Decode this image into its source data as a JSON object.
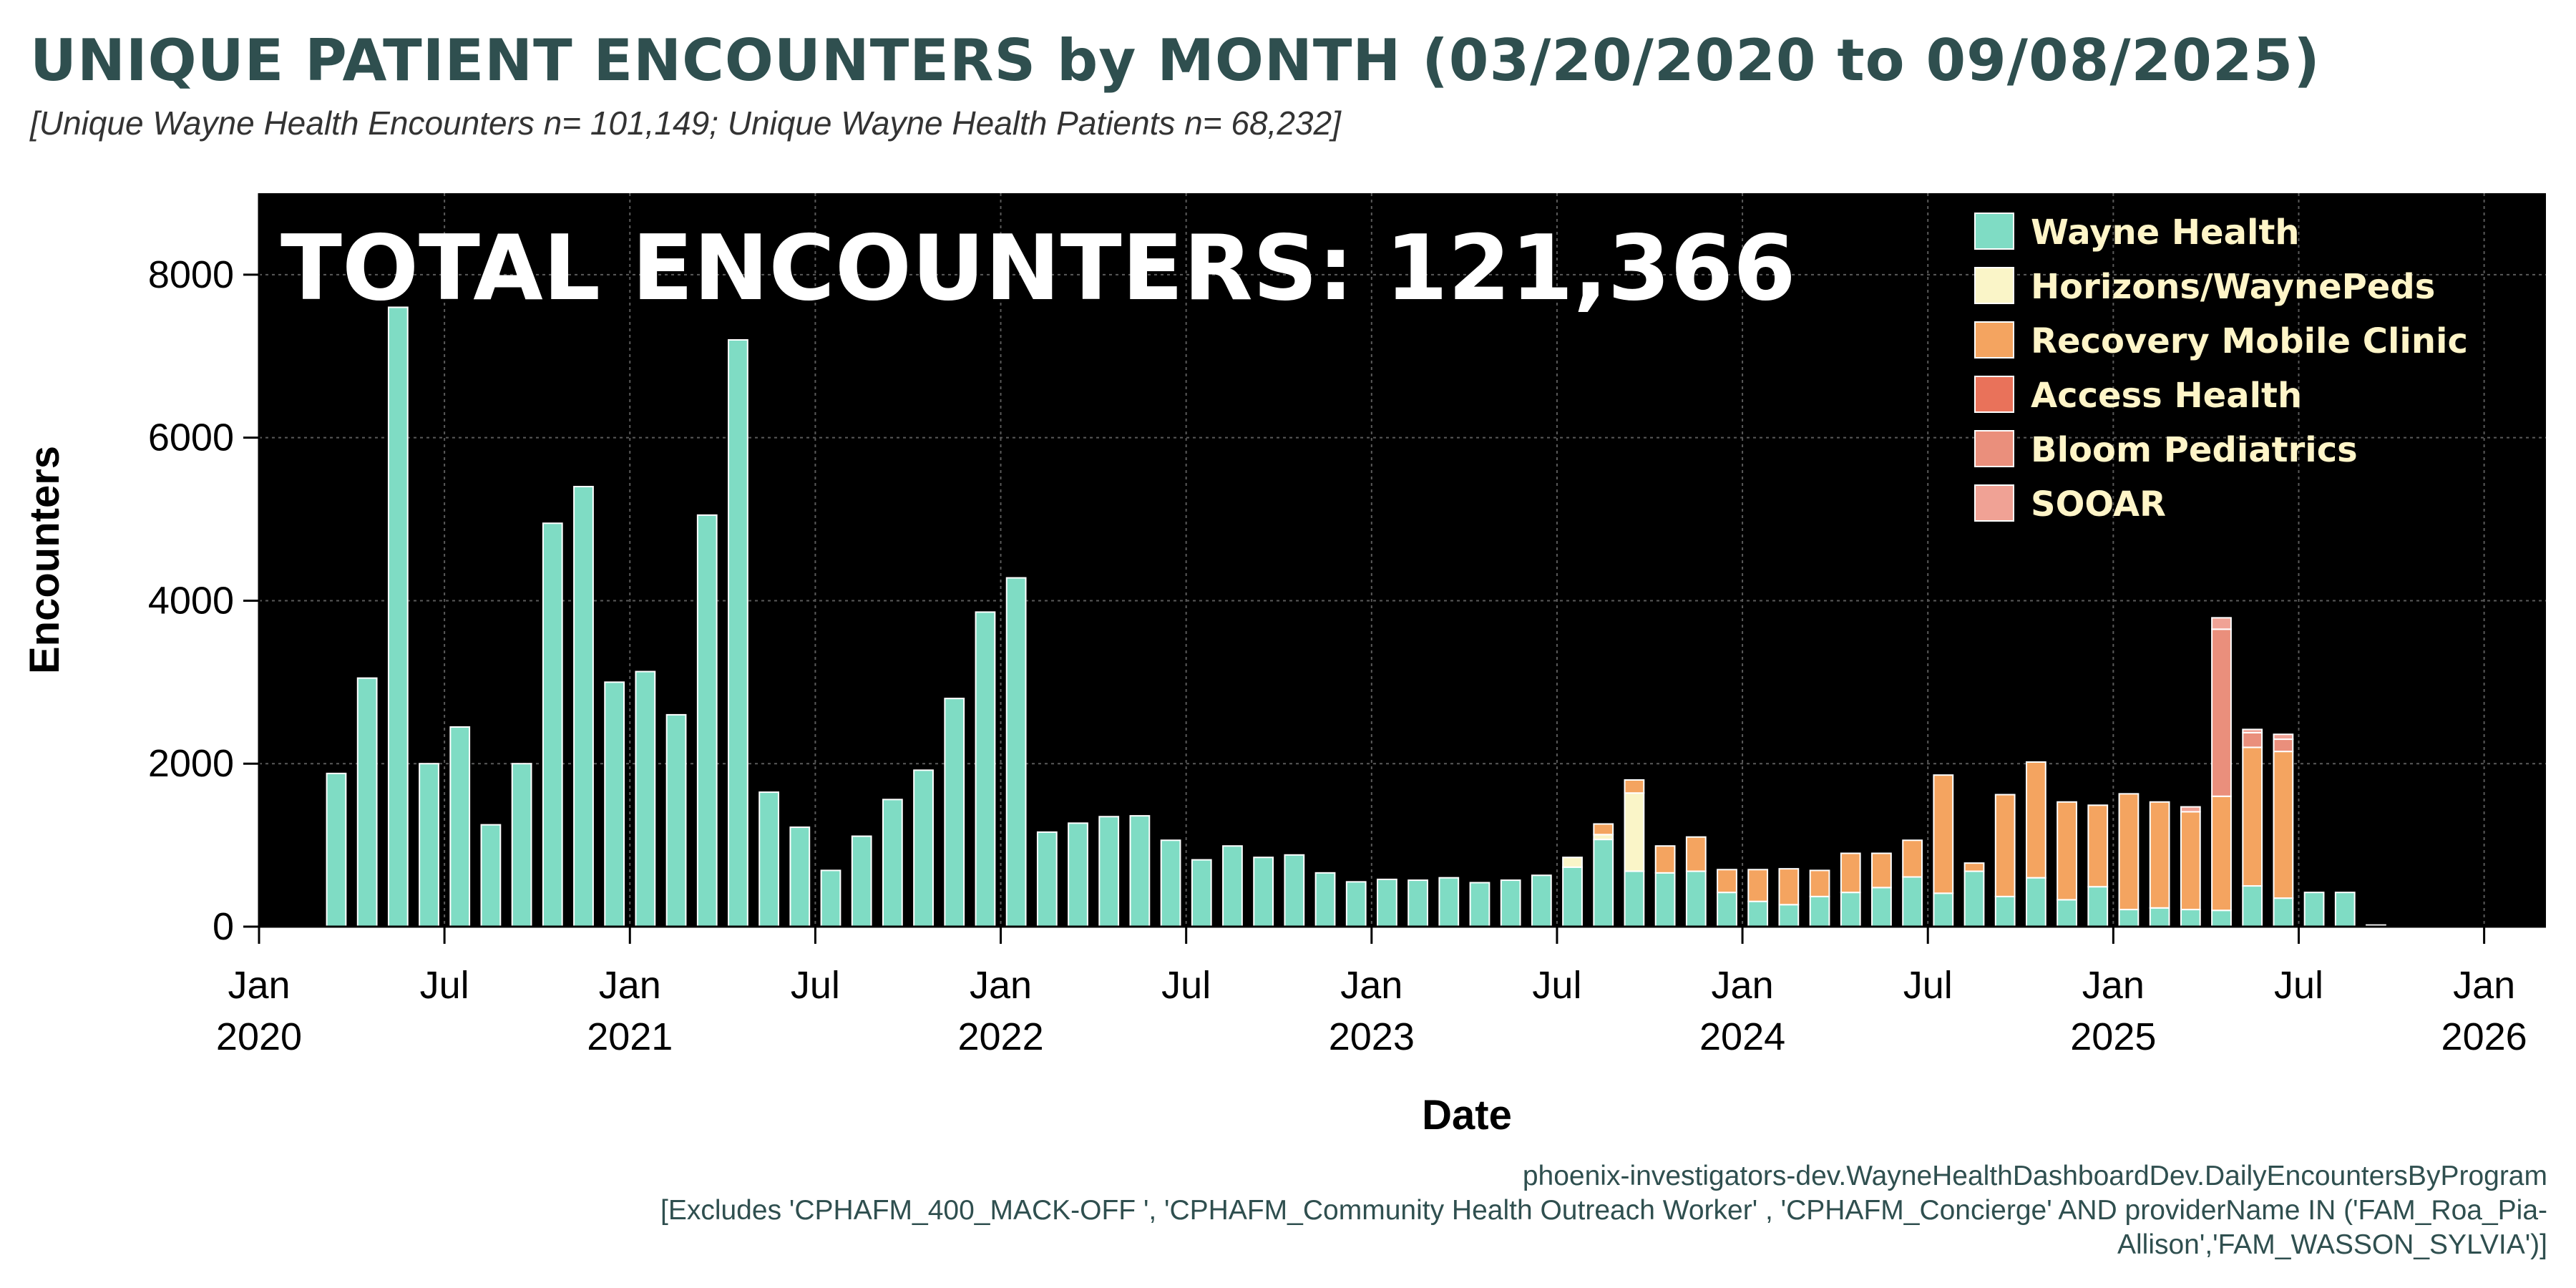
{
  "header": {
    "title": "UNIQUE PATIENT ENCOUNTERS by MONTH (03/20/2020 to 09/08/2025)",
    "subtitle": "[Unique Wayne Health Encounters n= 101,149; Unique Wayne Health Patients n=  68,232]"
  },
  "footer": {
    "line1": "phoenix-investigators-dev.WayneHealthDashboardDev.DailyEncountersByProgram",
    "line2": "[Excludes 'CPHAFM_400_MACK-OFF ', 'CPHAFM_Community Health Outreach Worker' , 'CPHAFM_Concierge' AND providerName IN ('FAM_Roa_Pia-",
    "line3": "Allison','FAM_WASSON_SYLVIA')]"
  },
  "colors": {
    "plot_background": "#000000",
    "bar_outline": "#ffffff",
    "axis_text": "#000000",
    "legend_text": "#fff5c8",
    "total_text": "#ffffff"
  },
  "chart_data": {
    "type": "bar",
    "stacked": true,
    "title": "UNIQUE PATIENT ENCOUNTERS by MONTH (03/20/2020 to 09/08/2025)",
    "xlabel": "Date",
    "ylabel": "Encounters",
    "annotation": "TOTAL ENCOUNTERS:  121,366",
    "ylim": [
      0,
      9000
    ],
    "xlim": [
      "2020-01",
      "2026-03"
    ],
    "yticks": [
      0,
      2000,
      4000,
      6000,
      8000
    ],
    "xticks": [
      {
        "month": "2020-01",
        "line1": "Jan",
        "line2": "2020"
      },
      {
        "month": "2020-07",
        "line1": "Jul",
        "line2": ""
      },
      {
        "month": "2021-01",
        "line1": "Jan",
        "line2": "2021"
      },
      {
        "month": "2021-07",
        "line1": "Jul",
        "line2": ""
      },
      {
        "month": "2022-01",
        "line1": "Jan",
        "line2": "2022"
      },
      {
        "month": "2022-07",
        "line1": "Jul",
        "line2": ""
      },
      {
        "month": "2023-01",
        "line1": "Jan",
        "line2": "2023"
      },
      {
        "month": "2023-07",
        "line1": "Jul",
        "line2": ""
      },
      {
        "month": "2024-01",
        "line1": "Jan",
        "line2": "2024"
      },
      {
        "month": "2024-07",
        "line1": "Jul",
        "line2": ""
      },
      {
        "month": "2025-01",
        "line1": "Jan",
        "line2": "2025"
      },
      {
        "month": "2025-07",
        "line1": "Jul",
        "line2": ""
      },
      {
        "month": "2026-01",
        "line1": "Jan",
        "line2": "2026"
      }
    ],
    "grid": true,
    "legend_position": "top-right",
    "categories": [
      "2020-03",
      "2020-04",
      "2020-05",
      "2020-06",
      "2020-07",
      "2020-08",
      "2020-09",
      "2020-10",
      "2020-11",
      "2020-12",
      "2021-01",
      "2021-02",
      "2021-03",
      "2021-04",
      "2021-05",
      "2021-06",
      "2021-07",
      "2021-08",
      "2021-09",
      "2021-10",
      "2021-11",
      "2021-12",
      "2022-01",
      "2022-02",
      "2022-03",
      "2022-04",
      "2022-05",
      "2022-06",
      "2022-07",
      "2022-08",
      "2022-09",
      "2022-10",
      "2022-11",
      "2022-12",
      "2023-01",
      "2023-02",
      "2023-03",
      "2023-04",
      "2023-05",
      "2023-06",
      "2023-07",
      "2023-08",
      "2023-09",
      "2023-10",
      "2023-11",
      "2023-12",
      "2024-01",
      "2024-02",
      "2024-03",
      "2024-04",
      "2024-05",
      "2024-06",
      "2024-07",
      "2024-08",
      "2024-09",
      "2024-10",
      "2024-11",
      "2024-12",
      "2025-01",
      "2025-02",
      "2025-03",
      "2025-04",
      "2025-05",
      "2025-06",
      "2025-07",
      "2025-08",
      "2025-09"
    ],
    "series": [
      {
        "name": "Wayne Health",
        "color": "#7fdcc4",
        "values": [
          1880,
          3050,
          7600,
          2000,
          2450,
          1250,
          2000,
          4950,
          5400,
          3000,
          3130,
          2600,
          5050,
          7200,
          1650,
          1220,
          690,
          1110,
          1560,
          1920,
          2800,
          3860,
          4280,
          1160,
          1270,
          1350,
          1360,
          1060,
          820,
          990,
          850,
          880,
          660,
          550,
          580,
          570,
          600,
          540,
          570,
          630,
          730,
          1070,
          680,
          660,
          680,
          420,
          310,
          270,
          370,
          420,
          480,
          610,
          410,
          680,
          370,
          600,
          330,
          490,
          210,
          230,
          210,
          200,
          500,
          350,
          420,
          420,
          20
        ]
      },
      {
        "name": "Horizons/WaynePeds",
        "color": "#faf5c8",
        "values": [
          0,
          0,
          0,
          0,
          0,
          0,
          0,
          0,
          0,
          0,
          0,
          0,
          0,
          0,
          0,
          0,
          0,
          0,
          0,
          0,
          0,
          0,
          0,
          0,
          0,
          0,
          0,
          0,
          0,
          0,
          0,
          0,
          0,
          0,
          0,
          0,
          0,
          0,
          0,
          0,
          120,
          60,
          960,
          0,
          0,
          0,
          0,
          0,
          0,
          0,
          0,
          0,
          0,
          0,
          0,
          0,
          0,
          0,
          0,
          0,
          0,
          0,
          0,
          0,
          0,
          0,
          0
        ]
      },
      {
        "name": "Recovery Mobile Clinic",
        "color": "#f4a460",
        "values": [
          0,
          0,
          0,
          0,
          0,
          0,
          0,
          0,
          0,
          0,
          0,
          0,
          0,
          0,
          0,
          0,
          0,
          0,
          0,
          0,
          0,
          0,
          0,
          0,
          0,
          0,
          0,
          0,
          0,
          0,
          0,
          0,
          0,
          0,
          0,
          0,
          0,
          0,
          0,
          0,
          0,
          130,
          160,
          330,
          420,
          280,
          390,
          440,
          320,
          480,
          420,
          450,
          1450,
          100,
          1250,
          1420,
          1200,
          1000,
          1420,
          1300,
          1200,
          1400,
          1700,
          1800,
          0,
          0,
          0
        ]
      },
      {
        "name": "Access Health",
        "color": "#e9725a",
        "values": [
          0,
          0,
          0,
          0,
          0,
          0,
          0,
          0,
          0,
          0,
          0,
          0,
          0,
          0,
          0,
          0,
          0,
          0,
          0,
          0,
          0,
          0,
          0,
          0,
          0,
          0,
          0,
          0,
          0,
          0,
          0,
          0,
          0,
          0,
          0,
          0,
          0,
          0,
          0,
          0,
          0,
          0,
          0,
          0,
          0,
          0,
          0,
          0,
          0,
          0,
          0,
          0,
          0,
          0,
          0,
          0,
          0,
          0,
          0,
          0,
          0,
          0,
          0,
          0,
          0,
          0,
          0
        ]
      },
      {
        "name": "Bloom Pediatrics",
        "color": "#ea8f7c",
        "values": [
          0,
          0,
          0,
          0,
          0,
          0,
          0,
          0,
          0,
          0,
          0,
          0,
          0,
          0,
          0,
          0,
          0,
          0,
          0,
          0,
          0,
          0,
          0,
          0,
          0,
          0,
          0,
          0,
          0,
          0,
          0,
          0,
          0,
          0,
          0,
          0,
          0,
          0,
          0,
          0,
          0,
          0,
          0,
          0,
          0,
          0,
          0,
          0,
          0,
          0,
          0,
          0,
          0,
          0,
          0,
          0,
          0,
          0,
          0,
          0,
          0,
          2050,
          180,
          150,
          0,
          0,
          0
        ]
      },
      {
        "name": "SOOAR",
        "color": "#f0a295",
        "values": [
          0,
          0,
          0,
          0,
          0,
          0,
          0,
          0,
          0,
          0,
          0,
          0,
          0,
          0,
          0,
          0,
          0,
          0,
          0,
          0,
          0,
          0,
          0,
          0,
          0,
          0,
          0,
          0,
          0,
          0,
          0,
          0,
          0,
          0,
          0,
          0,
          0,
          0,
          0,
          0,
          0,
          0,
          0,
          0,
          0,
          0,
          0,
          0,
          0,
          0,
          0,
          0,
          0,
          0,
          0,
          0,
          0,
          0,
          0,
          0,
          60,
          140,
          40,
          60,
          0,
          0,
          0
        ]
      }
    ]
  }
}
